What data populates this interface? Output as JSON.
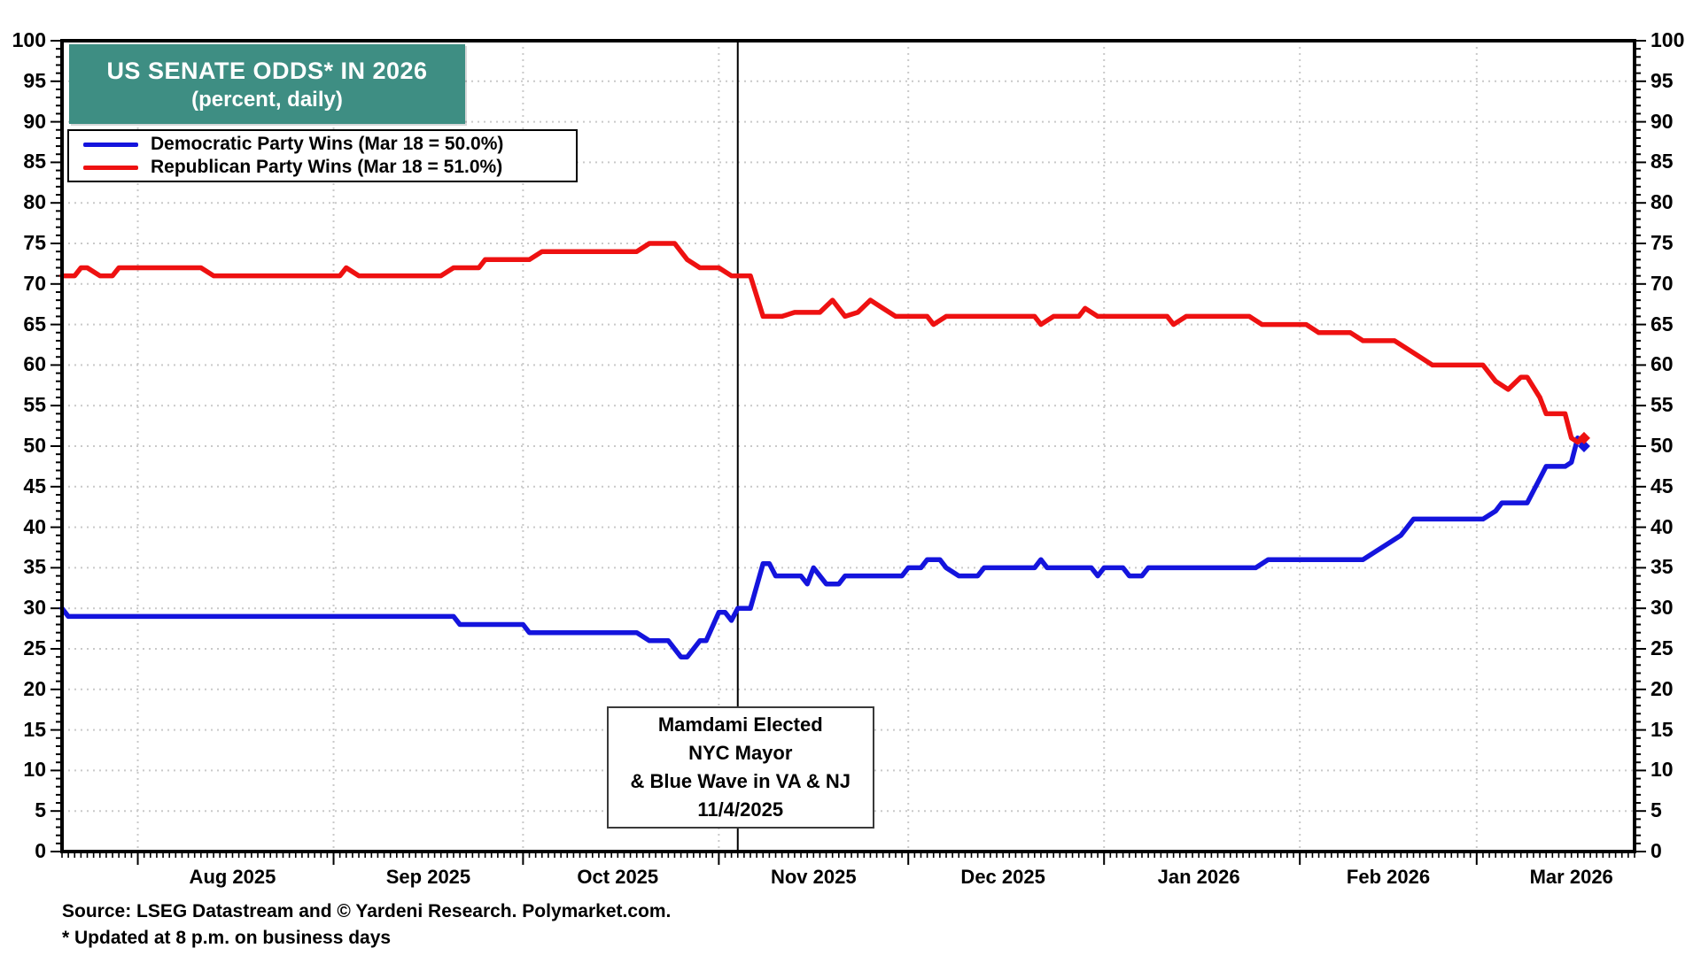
{
  "title": {
    "line1": "US SENATE ODDS* IN 2026",
    "line2": "(percent, daily)",
    "bg_color": "#3e8e83",
    "text_color": "#ffffff"
  },
  "legend": {
    "items": [
      {
        "label": "Democratic Party Wins (Mar 18 = 50.0%)",
        "color": "#1414dd"
      },
      {
        "label": "Republican Party Wins (Mar 18 = 51.0%)",
        "color": "#ee1111"
      }
    ]
  },
  "annotation": {
    "lines": [
      "Mamdami Elected",
      "NYC Mayor",
      "& Blue Wave in VA & NJ",
      "11/4/2025"
    ],
    "event_day": 107
  },
  "footer": {
    "source": "Source: LSEG Datastream and © Yardeni Research. Polymarket.com.",
    "note": "* Updated at 8 p.m. on business days"
  },
  "colors": {
    "axis": "#000000",
    "grid": "#c9c9c9",
    "event_line": "#000000"
  },
  "chart_data": {
    "type": "line",
    "title": "US SENATE ODDS* IN 2026 (percent, daily)",
    "x_unit": "days since 2025-07-20",
    "x_domain": [
      0,
      249
    ],
    "ylim": [
      0,
      100
    ],
    "y_tick_major": 5,
    "y_tick_minor": 1,
    "grid": "dotted horizontal every 5, vertical at month starts",
    "legend_position": "top-left",
    "months": [
      {
        "label": "Aug 2025",
        "start": 12,
        "mid": 27
      },
      {
        "label": "Sep 2025",
        "start": 43,
        "mid": 58
      },
      {
        "label": "Oct 2025",
        "start": 73,
        "mid": 88
      },
      {
        "label": "Nov 2025",
        "start": 104,
        "mid": 119
      },
      {
        "label": "Dec 2025",
        "start": 134,
        "mid": 149
      },
      {
        "label": "Jan 2026",
        "start": 165,
        "mid": 180
      },
      {
        "label": "Feb 2026",
        "start": 196,
        "mid": 210
      },
      {
        "label": "Mar 2026",
        "start": 224,
        "mid": 239
      }
    ],
    "event_line_day": 107,
    "series": [
      {
        "name": "Democratic Party Wins",
        "color": "#1414dd",
        "final_value": 50.0,
        "points": [
          [
            0,
            30
          ],
          [
            1,
            29
          ],
          [
            62,
            29
          ],
          [
            63,
            28
          ],
          [
            73,
            28
          ],
          [
            74,
            27
          ],
          [
            91,
            27
          ],
          [
            93,
            26
          ],
          [
            96,
            26
          ],
          [
            98,
            24
          ],
          [
            99,
            24
          ],
          [
            101,
            26
          ],
          [
            102,
            26
          ],
          [
            104,
            29.5
          ],
          [
            105,
            29.5
          ],
          [
            106,
            28.5
          ],
          [
            107,
            30
          ],
          [
            109,
            30
          ],
          [
            111,
            35.5
          ],
          [
            112,
            35.5
          ],
          [
            113,
            34
          ],
          [
            117,
            34
          ],
          [
            118,
            33
          ],
          [
            119,
            35
          ],
          [
            121,
            33
          ],
          [
            123,
            33
          ],
          [
            124,
            34
          ],
          [
            133,
            34
          ],
          [
            134,
            35
          ],
          [
            136,
            35
          ],
          [
            137,
            36
          ],
          [
            139,
            36
          ],
          [
            140,
            35
          ],
          [
            142,
            34
          ],
          [
            145,
            34
          ],
          [
            146,
            35
          ],
          [
            154,
            35
          ],
          [
            155,
            36
          ],
          [
            156,
            35
          ],
          [
            163,
            35
          ],
          [
            164,
            34
          ],
          [
            165,
            35
          ],
          [
            168,
            35
          ],
          [
            169,
            34
          ],
          [
            171,
            34
          ],
          [
            172,
            35
          ],
          [
            189,
            35
          ],
          [
            191,
            36
          ],
          [
            206,
            36
          ],
          [
            208,
            37
          ],
          [
            210,
            38
          ],
          [
            212,
            39
          ],
          [
            214,
            41
          ],
          [
            225,
            41
          ],
          [
            227,
            42
          ],
          [
            228,
            43
          ],
          [
            232,
            43
          ],
          [
            234,
            46
          ],
          [
            235,
            47.5
          ],
          [
            238,
            47.5
          ],
          [
            239,
            48
          ],
          [
            240,
            51
          ],
          [
            241,
            50
          ]
        ]
      },
      {
        "name": "Republican Party Wins",
        "color": "#ee1111",
        "final_value": 51.0,
        "points": [
          [
            0,
            71
          ],
          [
            2,
            71
          ],
          [
            3,
            72
          ],
          [
            4,
            72
          ],
          [
            6,
            71
          ],
          [
            8,
            71
          ],
          [
            9,
            72
          ],
          [
            22,
            72
          ],
          [
            24,
            71
          ],
          [
            44,
            71
          ],
          [
            45,
            72
          ],
          [
            47,
            71
          ],
          [
            60,
            71
          ],
          [
            62,
            72
          ],
          [
            66,
            72
          ],
          [
            67,
            73
          ],
          [
            74,
            73
          ],
          [
            76,
            74
          ],
          [
            91,
            74
          ],
          [
            93,
            75
          ],
          [
            97,
            75
          ],
          [
            99,
            73
          ],
          [
            101,
            72
          ],
          [
            104,
            72
          ],
          [
            106,
            71
          ],
          [
            109,
            71
          ],
          [
            111,
            66
          ],
          [
            114,
            66
          ],
          [
            116,
            66.5
          ],
          [
            120,
            66.5
          ],
          [
            122,
            68
          ],
          [
            124,
            66
          ],
          [
            126,
            66.5
          ],
          [
            128,
            68
          ],
          [
            130,
            67
          ],
          [
            132,
            66
          ],
          [
            137,
            66
          ],
          [
            138,
            65
          ],
          [
            140,
            66
          ],
          [
            154,
            66
          ],
          [
            155,
            65
          ],
          [
            157,
            66
          ],
          [
            161,
            66
          ],
          [
            162,
            67
          ],
          [
            164,
            66
          ],
          [
            175,
            66
          ],
          [
            176,
            65
          ],
          [
            178,
            66
          ],
          [
            188,
            66
          ],
          [
            190,
            65
          ],
          [
            197,
            65
          ],
          [
            199,
            64
          ],
          [
            204,
            64
          ],
          [
            206,
            63
          ],
          [
            211,
            63
          ],
          [
            213,
            62
          ],
          [
            215,
            61
          ],
          [
            217,
            60
          ],
          [
            225,
            60
          ],
          [
            227,
            58
          ],
          [
            229,
            57
          ],
          [
            231,
            58.5
          ],
          [
            232,
            58.5
          ],
          [
            234,
            56
          ],
          [
            235,
            54
          ],
          [
            238,
            54
          ],
          [
            239,
            51
          ],
          [
            240,
            50.5
          ],
          [
            241,
            51
          ]
        ]
      }
    ]
  }
}
